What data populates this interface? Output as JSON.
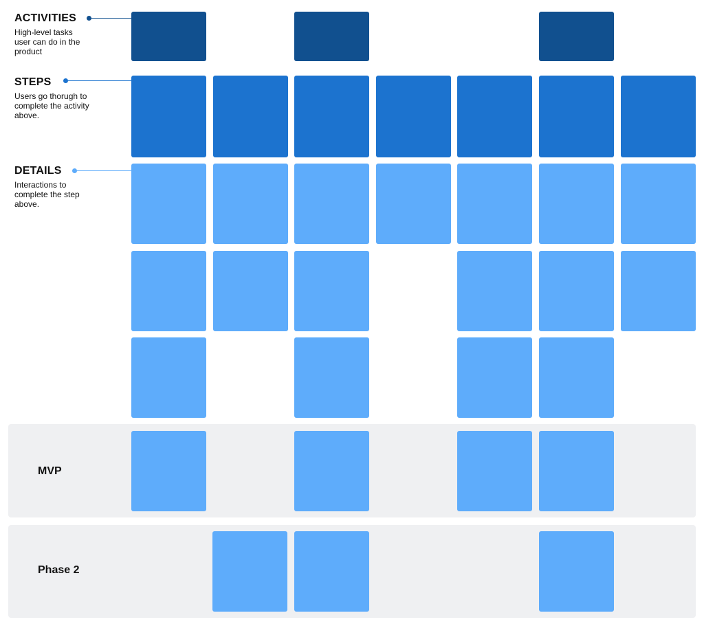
{
  "colors": {
    "activity": "#11508F",
    "step": "#1C73CF",
    "detail": "#5EACFB",
    "band": "#EFF0F2"
  },
  "legend": {
    "activities": {
      "title": "ACTIVITIES",
      "description": "High-level tasks user can do in the product"
    },
    "steps": {
      "title": "STEPS",
      "description": "Users go thorugh to complete the activity above."
    },
    "details": {
      "title": "DETAILS",
      "description": "Interactions to complete the step above."
    }
  },
  "bands": {
    "mvp": {
      "label": "MVP"
    },
    "phase2": {
      "label": "Phase 2"
    }
  }
}
